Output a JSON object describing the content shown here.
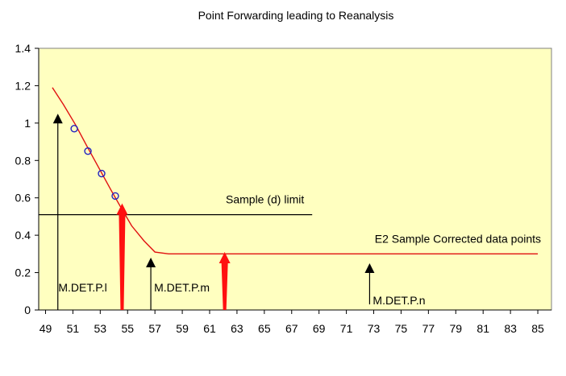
{
  "chart_data": {
    "type": "line",
    "title": "Point Forwarding leading to Reanalysis",
    "xlabel": "",
    "ylabel": "",
    "xlim": [
      48.5,
      86
    ],
    "ylim": [
      0,
      1.4
    ],
    "x_ticks": [
      49,
      51,
      53,
      55,
      57,
      59,
      61,
      63,
      65,
      67,
      69,
      71,
      73,
      75,
      77,
      79,
      81,
      83,
      85
    ],
    "y_ticks": [
      0,
      0.2,
      0.4,
      0.6,
      0.8,
      1,
      1.2,
      1.4
    ],
    "y_tick_labels": [
      "0",
      "0.2",
      "0.4",
      "0.6",
      "0.8",
      "1",
      "1.2",
      "1.4"
    ],
    "grid": false,
    "plot_background": "#ffffc0",
    "series": [
      {
        "color": "#e01010",
        "x": [
          49.5,
          50.3,
          51.2,
          52,
          52.9,
          53.8,
          54.5,
          55.3,
          56.2,
          57,
          58,
          62,
          70,
          85
        ],
        "y": [
          1.19,
          1.1,
          0.99,
          0.88,
          0.76,
          0.64,
          0.55,
          0.45,
          0.37,
          0.31,
          0.3,
          0.3,
          0.3,
          0.3
        ]
      }
    ],
    "markers": {
      "shape": "circle",
      "color": "#2020c0",
      "x": [
        51.1,
        52.1,
        53.1,
        54.1
      ],
      "y": [
        0.97,
        0.85,
        0.73,
        0.61
      ]
    },
    "reference_line": {
      "label": "Sample (d) limit",
      "y": 0.51,
      "x_start": 48.5,
      "x_end": 68.5
    },
    "annotations": [
      {
        "text": "M.DET.P.l",
        "x": 49.7,
        "y_label": 0.1
      },
      {
        "text": "M.DET.P.m",
        "x": 56.7,
        "y_label": 0.1
      },
      {
        "text": "M.DET.P.n",
        "x": 72.7,
        "y_label": 0.03
      },
      {
        "text": "E2 Sample Corrected data points",
        "x": 85,
        "y_label": 0.36
      }
    ],
    "black_arrows": [
      {
        "x": 49.9,
        "y_from": 0,
        "y_to": 1.05
      },
      {
        "x": 56.7,
        "y_from": 0,
        "y_to": 0.28
      },
      {
        "x": 72.7,
        "y_from": 0.03,
        "y_to": 0.25
      }
    ],
    "red_arrows": [
      {
        "x": 54.6,
        "y_from": 0,
        "y_to": 0.57
      },
      {
        "x": 62.1,
        "y_from": 0,
        "y_to": 0.31
      }
    ]
  }
}
